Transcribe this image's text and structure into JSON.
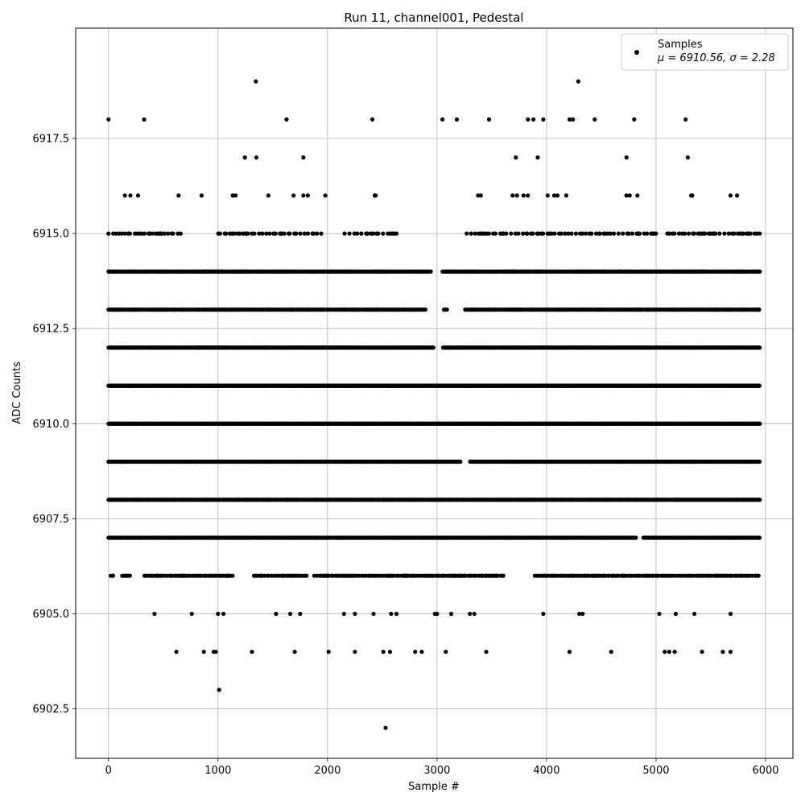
{
  "chart_data": {
    "type": "scatter",
    "title": "Run 11, channel001, Pedestal",
    "xlabel": "Sample #",
    "ylabel": "ADC Counts",
    "xlim": [
      -300,
      6250
    ],
    "ylim": [
      6901.2,
      6920.4
    ],
    "xticks": [
      0,
      1000,
      2000,
      3000,
      4000,
      5000,
      6000
    ],
    "xtick_labels": [
      "0",
      "1000",
      "2000",
      "3000",
      "4000",
      "5000",
      "6000"
    ],
    "yticks": [
      6902.5,
      6905.0,
      6907.5,
      6910.0,
      6912.5,
      6915.0,
      6917.5
    ],
    "ytick_labels": [
      "6902.5",
      "6905.0",
      "6907.5",
      "6910.0",
      "6912.5",
      "6915.0",
      "6917.5"
    ],
    "grid": true,
    "legend": {
      "placement": "top-right",
      "entries": [
        {
          "label": "Samples",
          "stats": "μ = 6910.56, σ = 2.28"
        }
      ]
    },
    "series": [
      {
        "name": "Samples",
        "color": "#000000",
        "n_samples": 5950,
        "levels": [
          {
            "y": 6919,
            "x": [
              1345,
              4290
            ]
          },
          {
            "y": 6918,
            "x": [
              0,
              325,
              1625,
              2410,
              3050,
              3180,
              3475,
              3830,
              3880,
              3970,
              4210,
              4240,
              4440,
              4800,
              5270
            ]
          },
          {
            "y": 6917,
            "x": [
              1245,
              1350,
              1780,
              3720,
              3920,
              4730,
              5290
            ]
          },
          {
            "y": 6916,
            "x": [
              150,
              200,
              270,
              640,
              850,
              1135,
              1160,
              1460,
              1690,
              1780,
              1820,
              1980,
              2430,
              2440,
              3375,
              3400,
              3690,
              3730,
              3790,
              3830,
              4010,
              4070,
              4100,
              4180,
              4730,
              4760,
              4830,
              5320,
              5330,
              5680,
              5740
            ]
          },
          {
            "y": 6915,
            "range": [
              0,
              5950
            ],
            "spacing": 26,
            "gaps": [
              [
                700,
                1000
              ],
              [
                1950,
                2150
              ],
              [
                2650,
                3250
              ],
              [
                5000,
                5100
              ]
            ]
          },
          {
            "y": 6914,
            "range": [
              0,
              5950
            ],
            "spacing": 7,
            "gaps": [
              [
                2950,
                3050
              ]
            ]
          },
          {
            "y": 6913,
            "range": [
              0,
              5950
            ],
            "spacing": 11,
            "gaps": [
              [
                2900,
                3050
              ],
              [
                3100,
                3250
              ]
            ]
          },
          {
            "y": 6912,
            "range": [
              0,
              5950
            ],
            "spacing": 5,
            "gaps": [
              [
                2970,
                3050
              ]
            ]
          },
          {
            "y": 6911,
            "range": [
              0,
              5950
            ],
            "spacing": 4,
            "gaps": []
          },
          {
            "y": 6910,
            "range": [
              0,
              5950
            ],
            "spacing": 4,
            "gaps": []
          },
          {
            "y": 6909,
            "range": [
              0,
              5950
            ],
            "spacing": 9,
            "gaps": [
              [
                3220,
                3300
              ]
            ]
          },
          {
            "y": 6908,
            "range": [
              0,
              5950
            ],
            "spacing": 6,
            "gaps": []
          },
          {
            "y": 6907,
            "range": [
              0,
              5950
            ],
            "spacing": 9,
            "gaps": [
              [
                4820,
                4880
              ]
            ]
          },
          {
            "y": 6906,
            "range": [
              20,
              5950
            ],
            "spacing": 15,
            "gaps": [
              [
                50,
                120
              ],
              [
                200,
                320
              ],
              [
                1140,
                1320
              ],
              [
                1810,
                1870
              ],
              [
                3620,
                3880
              ]
            ]
          },
          {
            "y": 6905,
            "x": [
              420,
              760,
              1000,
              1050,
              1530,
              1660,
              1750,
              2150,
              2250,
              2420,
              2580,
              2630,
              2980,
              3000,
              3130,
              3300,
              3340,
              3970,
              4300,
              4330,
              5030,
              5180,
              5350,
              5680
            ]
          },
          {
            "y": 6904,
            "x": [
              620,
              870,
              960,
              980,
              1310,
              1700,
              2010,
              2250,
              2510,
              2570,
              2800,
              2860,
              3080,
              3450,
              4210,
              4590,
              5080,
              5120,
              5170,
              5420,
              5610,
              5680
            ]
          },
          {
            "y": 6903,
            "x": [
              1010
            ]
          },
          {
            "y": 6902,
            "x": [
              2530
            ]
          }
        ]
      }
    ]
  }
}
